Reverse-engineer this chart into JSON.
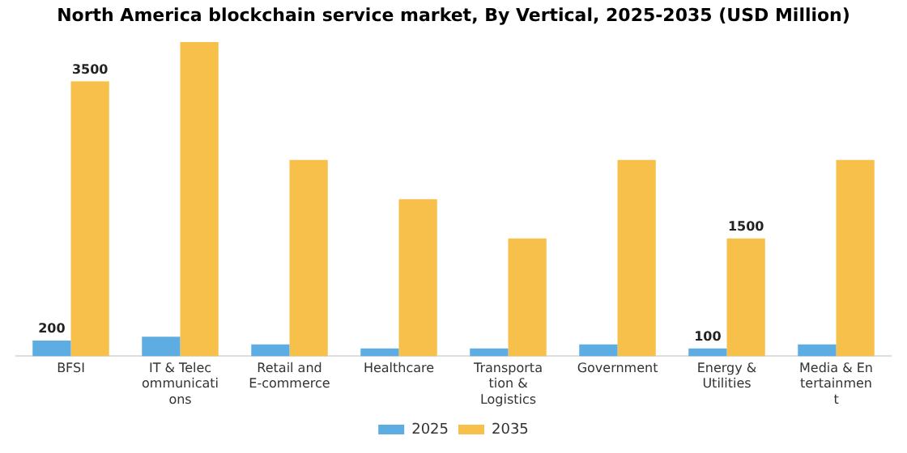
{
  "chart_data": {
    "type": "bar",
    "title": "North America blockchain service market, By Vertical, 2025-2035 (USD Million)",
    "categories": [
      "BFSI",
      "IT & Telec\nommunicati\nons",
      "Retail and\nE-commerce",
      "Healthcare",
      "Transporta\ntion &\nLogistics",
      "Government",
      "Energy &\nUtilities",
      "Media & En\ntertainmen\nt"
    ],
    "series": [
      {
        "name": "2025",
        "color": "#5dade2",
        "values": [
          200,
          250,
          150,
          100,
          100,
          150,
          100,
          150
        ],
        "value_labels": [
          "200",
          null,
          null,
          null,
          null,
          null,
          "100",
          null
        ]
      },
      {
        "name": "2035",
        "color": "#f7c04a",
        "values": [
          3500,
          4000,
          2500,
          2000,
          1500,
          2500,
          1500,
          2500
        ],
        "value_labels": [
          "3500",
          null,
          null,
          null,
          null,
          null,
          "1500",
          null
        ]
      }
    ],
    "ylim": [
      0,
      4000
    ],
    "tick_labels": "x",
    "grid": false,
    "legend": "bottom"
  }
}
